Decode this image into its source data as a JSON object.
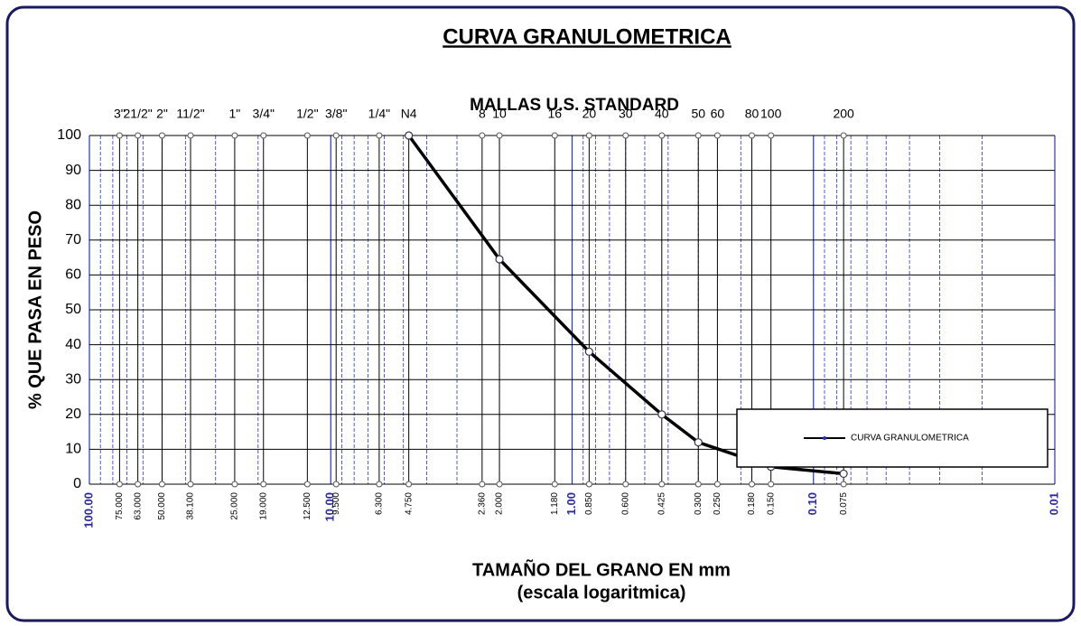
{
  "chart_data": {
    "type": "line",
    "title": "CURVA GRANULOMETRICA",
    "subtitle": "MALLAS U.S. STANDARD",
    "xlabel": "TAMAÑO DEL GRANO EN mm",
    "xlabel_note": "(escala logaritmica)",
    "ylabel": "% QUE PASA EN PESO",
    "xscale": "log",
    "xlim": [
      100,
      0.01
    ],
    "xticks": [
      {
        "value": 100,
        "label": "100.00"
      },
      {
        "value": 10,
        "label": "10.00"
      },
      {
        "value": 1,
        "label": "1.00"
      },
      {
        "value": 0.1,
        "label": "0.10"
      },
      {
        "value": 0.01,
        "label": "0.01"
      }
    ],
    "ylim": [
      0,
      100
    ],
    "yticks": [
      0,
      10,
      20,
      30,
      40,
      50,
      60,
      70,
      80,
      90,
      100
    ],
    "grid": true,
    "legend": "lower right",
    "sieves": {
      "names": [
        "3\"",
        "21/2\"",
        "2\"",
        "11/2\"",
        "1\"",
        "3/4\"",
        "1/2\"",
        "3/8\"",
        "1/4\"",
        "N4",
        "8",
        "10",
        "16",
        "20",
        "30",
        "40",
        "50",
        "60",
        "80",
        "100",
        "200"
      ],
      "sizes": [
        {
          "value": 75,
          "label": "75.000"
        },
        {
          "value": 63,
          "label": "63.000"
        },
        {
          "value": 50,
          "label": "50.000"
        },
        {
          "value": 38.1,
          "label": "38.100"
        },
        {
          "value": 25,
          "label": "25.000"
        },
        {
          "value": 19,
          "label": "19.000"
        },
        {
          "value": 12.5,
          "label": "12.500"
        },
        {
          "value": 9.5,
          "label": "9.500"
        },
        {
          "value": 6.3,
          "label": "6.300"
        },
        {
          "value": 4.75,
          "label": "4.750"
        },
        {
          "value": 2.36,
          "label": "2.360"
        },
        {
          "value": 2,
          "label": "2.000"
        },
        {
          "value": 1.18,
          "label": "1.180"
        },
        {
          "value": 0.85,
          "label": "0.850"
        },
        {
          "value": 0.6,
          "label": "0.600"
        },
        {
          "value": 0.425,
          "label": "0.425"
        },
        {
          "value": 0.3,
          "label": "0.300"
        },
        {
          "value": 0.25,
          "label": "0.250"
        },
        {
          "value": 0.18,
          "label": "0.180"
        },
        {
          "value": 0.15,
          "label": "0.150"
        },
        {
          "value": 0.075,
          "label": "0.075"
        }
      ]
    },
    "series": [
      {
        "name": "CURVA GRANULOMETRICA",
        "color": "#000000",
        "x": [
          4.75,
          2,
          0.85,
          0.425,
          0.3,
          0.15,
          0.075
        ],
        "values": [
          100,
          64.5,
          38,
          20,
          12,
          5,
          3
        ]
      }
    ]
  }
}
